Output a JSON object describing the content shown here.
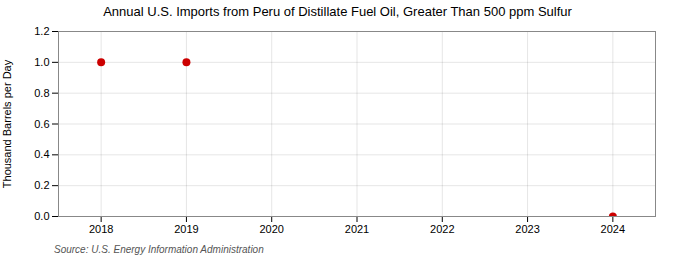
{
  "chart_data": {
    "type": "scatter",
    "title": "Annual U.S. Imports from Peru of Distillate Fuel Oil, Greater Than 500 ppm Sulfur",
    "ylabel": "Thousand Barrels per Day",
    "source": "Source: U.S. Energy Information Administration",
    "x": [
      2018,
      2019,
      2024
    ],
    "values": [
      1.0,
      1.0,
      0.0
    ],
    "color": "#cc0000",
    "xlim": [
      2017.5,
      2024.5
    ],
    "xticks": [
      2018,
      2019,
      2020,
      2021,
      2022,
      2023,
      2024
    ],
    "ylim": [
      0.0,
      1.2
    ],
    "yticks": [
      {
        "value": 0.0,
        "label": "0.0"
      },
      0.2,
      0.4,
      0.6,
      0.8,
      {
        "value": 1.0,
        "label": "1.0"
      },
      1.2
    ],
    "grid": true
  }
}
